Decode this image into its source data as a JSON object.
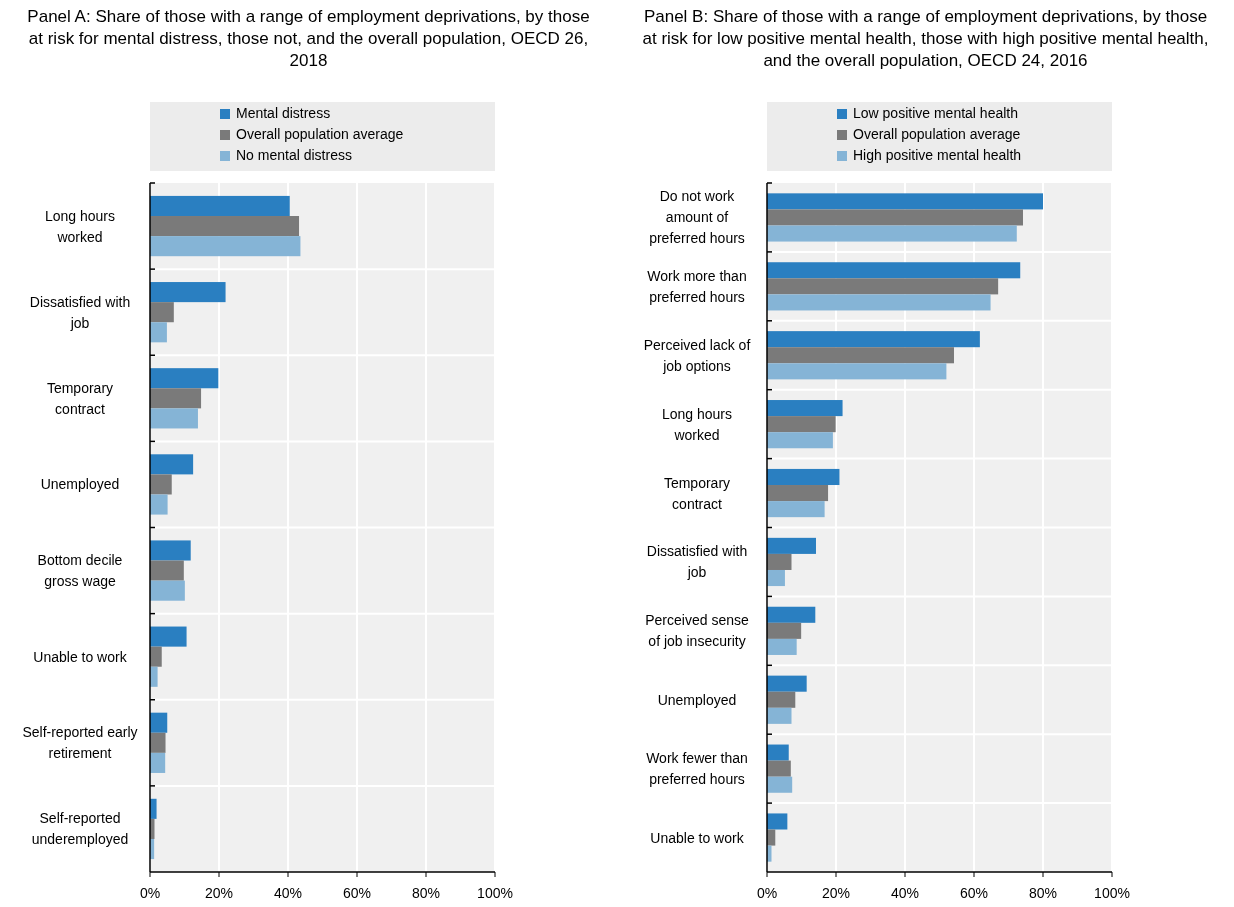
{
  "chart_data": [
    {
      "type": "bar",
      "orientation": "horizontal",
      "title": "Panel A: Share of those with a range of employment deprivations, by those at risk for mental distress, those not, and the overall population, OECD 26, 2018",
      "categories": [
        "Long hours worked",
        "Dissatisfied with job",
        "Temporary contract",
        "Unemployed",
        "Bottom decile gross wage",
        "Unable to work",
        "Self-reported early retirement",
        "Self-reported underemployed"
      ],
      "series": [
        {
          "name": "Mental distress",
          "color": "#2a7fc1",
          "values": [
            40.5,
            21.9,
            19.8,
            12.5,
            11.8,
            10.6,
            5.0,
            1.9
          ]
        },
        {
          "name": "Overall population average",
          "color": "#7a7a7a",
          "values": [
            43.2,
            6.9,
            14.8,
            6.3,
            9.8,
            3.4,
            4.5,
            1.3
          ]
        },
        {
          "name": "No mental distress",
          "color": "#85b4d6",
          "values": [
            43.6,
            4.9,
            13.9,
            5.1,
            10.1,
            2.2,
            4.4,
            1.2
          ]
        }
      ],
      "xlim": [
        0,
        100
      ],
      "xticks": [
        {
          "value": 0,
          "label": "0%"
        },
        {
          "value": 20,
          "label": "20%"
        },
        {
          "value": 40,
          "label": "40%"
        },
        {
          "value": 60,
          "label": "60%"
        },
        {
          "value": 80,
          "label": "80%"
        },
        {
          "value": 100,
          "label": "100%"
        }
      ],
      "grid": "x",
      "legend": "top"
    },
    {
      "type": "bar",
      "orientation": "horizontal",
      "title": "Panel B: Share of those with a range of employment deprivations, by those at risk for low positive mental health, those with high positive mental health, and the overall population, OECD 24, 2016",
      "categories": [
        "Do not work amount of preferred hours",
        "Work more than preferred hours",
        "Perceived lack of job options",
        "Long hours worked",
        "Temporary contract",
        "Dissatisfied with job",
        "Perceived sense of job insecurity",
        "Unemployed",
        "Work fewer than preferred hours",
        "Unable to work"
      ],
      "series": [
        {
          "name": "Low positive mental health",
          "color": "#2a7fc1",
          "values": [
            80.0,
            73.4,
            61.7,
            21.9,
            21.0,
            14.2,
            14.0,
            11.5,
            6.3,
            5.9
          ]
        },
        {
          "name": "Overall population average",
          "color": "#7a7a7a",
          "values": [
            74.2,
            67.0,
            54.2,
            19.9,
            17.7,
            7.1,
            9.9,
            8.2,
            6.9,
            2.4
          ]
        },
        {
          "name": "High positive mental health",
          "color": "#85b4d6",
          "values": [
            72.4,
            64.8,
            52.0,
            19.1,
            16.7,
            5.2,
            8.6,
            7.1,
            7.3,
            1.3
          ]
        }
      ],
      "xlim": [
        0,
        100
      ],
      "xticks": [
        {
          "value": 0,
          "label": "0%"
        },
        {
          "value": 20,
          "label": "20%"
        },
        {
          "value": 40,
          "label": "40%"
        },
        {
          "value": 60,
          "label": "60%"
        },
        {
          "value": 80,
          "label": "80%"
        },
        {
          "value": 100,
          "label": "100%"
        }
      ],
      "grid": "x",
      "legend": "top"
    }
  ]
}
